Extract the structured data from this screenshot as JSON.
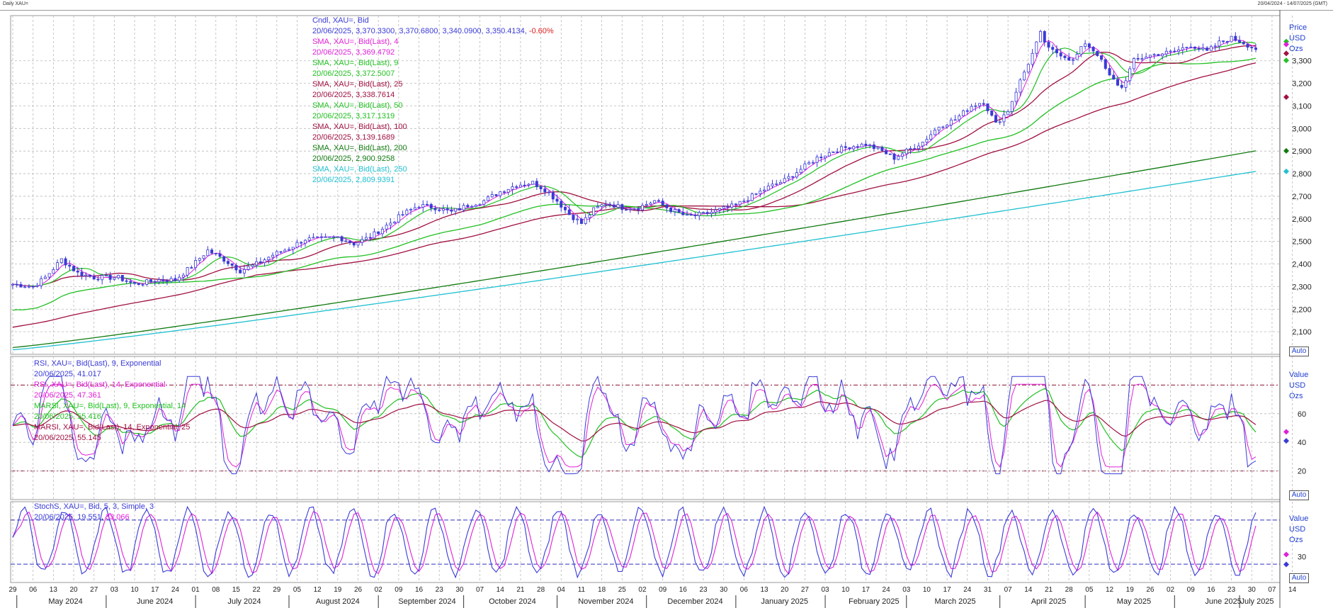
{
  "header": {
    "left_label": "Daily XAU=",
    "right_label": "20/04/2024 - 14/07/2025 (GMT)"
  },
  "colors": {
    "candle": "#3a3ad8",
    "sma4": "#e020d8",
    "sma9": "#22c022",
    "sma25": "#a01040",
    "sma50": "#22c022",
    "sma100": "#a01040",
    "sma200": "#107a10",
    "sma250": "#20c0d0",
    "rsi9": "#3a3ad8",
    "rsi14": "#e020d8",
    "marsi9": "#22c022",
    "marsi14": "#a01040",
    "grid": "#b8b8b8",
    "ref_line": "#8a1030",
    "stoch_ref": "#3030c0"
  },
  "price_legend": [
    {
      "text": "Cndl, XAU=, Bid",
      "color": "#3a3ad8"
    },
    {
      "text": "20/06/2025, 3,370.3300, 3,370.6800, 3,340.0900, 3,350.4134, ",
      "color": "#3a3ad8",
      "extra": "-0.60%",
      "extra_color": "#e02020"
    },
    {
      "text": "SMA, XAU=, Bid(Last),  4",
      "color": "#e020d8"
    },
    {
      "text": "20/06/2025, 3,369.4792",
      "color": "#e020d8"
    },
    {
      "text": "SMA, XAU=, Bid(Last),  9",
      "color": "#22c022"
    },
    {
      "text": "20/06/2025, 3,372.5007",
      "color": "#22c022"
    },
    {
      "text": "SMA, XAU=, Bid(Last),  25",
      "color": "#a01040"
    },
    {
      "text": "20/06/2025, 3,338.7614",
      "color": "#a01040"
    },
    {
      "text": "SMA, XAU=, Bid(Last),  50",
      "color": "#22c022"
    },
    {
      "text": "20/06/2025, 3,317.1319",
      "color": "#22c022"
    },
    {
      "text": "SMA, XAU=, Bid(Last),  100",
      "color": "#a01040"
    },
    {
      "text": "20/06/2025, 3,139.1689",
      "color": "#a01040"
    },
    {
      "text": "SMA, XAU=, Bid(Last),  200",
      "color": "#107a10"
    },
    {
      "text": "20/06/2025, 2,900.9258",
      "color": "#107a10"
    },
    {
      "text": "SMA, XAU=, Bid(Last),  250",
      "color": "#20c0d0"
    },
    {
      "text": "20/06/2025, 2,809.9391",
      "color": "#20c0d0"
    }
  ],
  "rsi_legend": [
    {
      "text": "RSI, XAU=, Bid(Last),  9, Exponential",
      "color": "#3a3ad8"
    },
    {
      "text": "20/06/2025, 41.017",
      "color": "#3a3ad8"
    },
    {
      "text": "RSI, XAU=, Bid(Last),  14, Exponential",
      "color": "#e020d8"
    },
    {
      "text": "20/06/2025, 47.361",
      "color": "#e020d8"
    },
    {
      "text": "MARSI, XAU=, Bid(Last),  9, Exponential, 14",
      "color": "#22c022"
    },
    {
      "text": "20/06/2025, 55.416",
      "color": "#22c022"
    },
    {
      "text": "MARSI, XAU=, Bid(Last),  14, Exponential, 25",
      "color": "#a01040"
    },
    {
      "text": "20/06/2025, 55.145",
      "color": "#a01040"
    }
  ],
  "stoch_legend": {
    "title": "StochS, XAU=, Bid,  5, 3, Simple, 3",
    "date": "20/06/2025, ",
    "v1": "19.551",
    "v2": "33.066"
  },
  "price_axis": {
    "labels": [
      "Price",
      "USD",
      "Ozs"
    ],
    "auto": "Auto"
  },
  "rsi_axis": {
    "labels": [
      "Value",
      "USD",
      "Ozs"
    ],
    "auto": "Auto"
  },
  "stoch_axis": {
    "labels": [
      "Value",
      "USD",
      "Ozs"
    ],
    "auto": "Auto"
  },
  "chart_data": {
    "type": "line",
    "price": {
      "ylim": [
        2000,
        3500
      ],
      "yticks": [
        2100,
        2200,
        2300,
        2400,
        2500,
        2600,
        2700,
        2800,
        2900,
        3000,
        3100,
        3200,
        3300
      ],
      "ytick_labels": [
        "2,100",
        "2,200",
        "2,300",
        "2,400",
        "2,500",
        "2,600",
        "2,700",
        "2,800",
        "2,900",
        "3,000",
        "3,100",
        "3,200",
        "3,300"
      ],
      "close_anchors": [
        [
          0,
          2310
        ],
        [
          5,
          2300
        ],
        [
          8,
          2340
        ],
        [
          12,
          2420
        ],
        [
          16,
          2360
        ],
        [
          20,
          2340
        ],
        [
          26,
          2340
        ],
        [
          30,
          2310
        ],
        [
          36,
          2330
        ],
        [
          40,
          2330
        ],
        [
          44,
          2390
        ],
        [
          48,
          2460
        ],
        [
          52,
          2420
        ],
        [
          56,
          2370
        ],
        [
          60,
          2400
        ],
        [
          64,
          2440
        ],
        [
          68,
          2470
        ],
        [
          72,
          2510
        ],
        [
          76,
          2510
        ],
        [
          80,
          2520
        ],
        [
          84,
          2490
        ],
        [
          88,
          2520
        ],
        [
          92,
          2570
        ],
        [
          96,
          2620
        ],
        [
          100,
          2660
        ],
        [
          104,
          2650
        ],
        [
          108,
          2630
        ],
        [
          112,
          2660
        ],
        [
          116,
          2680
        ],
        [
          120,
          2720
        ],
        [
          124,
          2750
        ],
        [
          128,
          2760
        ],
        [
          131,
          2730
        ],
        [
          134,
          2680
        ],
        [
          137,
          2620
        ],
        [
          140,
          2580
        ],
        [
          143,
          2640
        ],
        [
          146,
          2670
        ],
        [
          150,
          2650
        ],
        [
          154,
          2650
        ],
        [
          158,
          2680
        ],
        [
          162,
          2640
        ],
        [
          166,
          2610
        ],
        [
          170,
          2620
        ],
        [
          174,
          2640
        ],
        [
          178,
          2660
        ],
        [
          182,
          2700
        ],
        [
          186,
          2740
        ],
        [
          190,
          2770
        ],
        [
          194,
          2820
        ],
        [
          198,
          2870
        ],
        [
          202,
          2900
        ],
        [
          206,
          2920
        ],
        [
          210,
          2930
        ],
        [
          214,
          2900
        ],
        [
          217,
          2870
        ],
        [
          220,
          2900
        ],
        [
          224,
          2940
        ],
        [
          228,
          3010
        ],
        [
          232,
          3040
        ],
        [
          236,
          3100
        ],
        [
          239,
          3120
        ],
        [
          242,
          3020
        ],
        [
          245,
          3080
        ],
        [
          248,
          3210
        ],
        [
          251,
          3330
        ],
        [
          253,
          3420
        ],
        [
          255,
          3350
        ],
        [
          258,
          3330
        ],
        [
          261,
          3300
        ],
        [
          264,
          3380
        ],
        [
          267,
          3330
        ],
        [
          270,
          3230
        ],
        [
          273,
          3180
        ],
        [
          276,
          3300
        ],
        [
          279,
          3320
        ],
        [
          282,
          3330
        ],
        [
          286,
          3340
        ],
        [
          290,
          3370
        ],
        [
          294,
          3340
        ],
        [
          297,
          3380
        ],
        [
          300,
          3400
        ],
        [
          303,
          3380
        ],
        [
          306,
          3350
        ]
      ],
      "sma_last": {
        "4": 3369.4792,
        "9": 3372.5007,
        "25": 3338.7614,
        "50": 3317.1319,
        "100": 3139.1689,
        "200": 2900.9258,
        "250": 2809.9391
      },
      "sma200_start": 2030,
      "sma250_start": 2020,
      "sma100_start": 2120,
      "sma50_start": 2210
    },
    "rsi": {
      "ylim": [
        0,
        100
      ],
      "yticks": [
        20,
        40,
        60
      ],
      "ref_lines": [
        20,
        80
      ]
    },
    "stoch": {
      "ylim": [
        -5,
        105
      ],
      "yticks": [
        30
      ],
      "ref_lines": [
        20,
        80
      ]
    },
    "x_day_labels": [
      "29",
      "06",
      "13",
      "20",
      "27",
      "03",
      "10",
      "17",
      "24",
      "01",
      "08",
      "15",
      "22",
      "29",
      "05",
      "12",
      "19",
      "26",
      "02",
      "09",
      "16",
      "23",
      "30",
      "07",
      "14",
      "21",
      "28",
      "04",
      "11",
      "18",
      "25",
      "02",
      "09",
      "16",
      "23",
      "30",
      "06",
      "13",
      "20",
      "27",
      "03",
      "10",
      "17",
      "24",
      "03",
      "10",
      "17",
      "24",
      "31",
      "07",
      "14",
      "21",
      "28",
      "05",
      "12",
      "19",
      "26",
      "02",
      "09",
      "16",
      "23",
      "30",
      "07",
      "14"
    ],
    "x_month_labels": [
      "May 2024",
      "June 2024",
      "July 2024",
      "August 2024",
      "September 2024",
      "October 2024",
      "November 2024",
      "December 2024",
      "January 2025",
      "February 2025",
      "March 2025",
      "April 2025",
      "May 2025",
      "June 2025",
      "July 2025"
    ],
    "last_day_index": 306
  }
}
